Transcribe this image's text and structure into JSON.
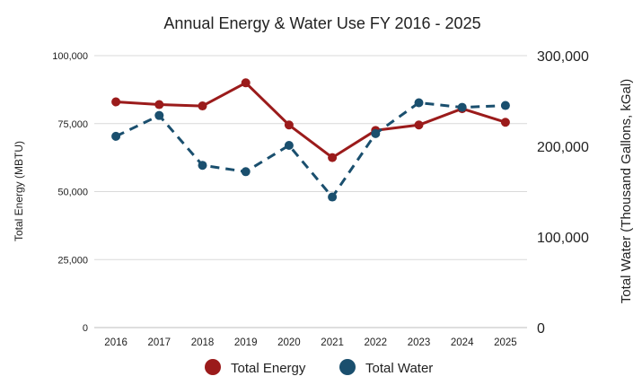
{
  "chart_data": {
    "type": "line",
    "title": "Annual Energy & Water Use FY 2016 - 2025",
    "categories": [
      "2016",
      "2017",
      "2018",
      "2019",
      "2020",
      "2021",
      "2022",
      "2023",
      "2024",
      "2025"
    ],
    "y_left": {
      "label": "Total Energy (MBTU)",
      "ylim": [
        0,
        100000
      ],
      "ticks": [
        0,
        25000,
        50000,
        75000,
        100000
      ],
      "tick_labels": [
        "0",
        "25,000",
        "50,000",
        "75,000",
        "100,000"
      ]
    },
    "y_right": {
      "label": "Total Water (Thousand Gallons, kGal)",
      "ylim": [
        0,
        300000
      ],
      "ticks": [
        0,
        100000,
        200000,
        300000
      ],
      "tick_labels": [
        "0",
        "100,000",
        "200,000",
        "300,000"
      ]
    },
    "series": [
      {
        "name": "Total Energy",
        "axis": "left",
        "color": "#9b1b1b",
        "line_style": "solid",
        "values": [
          83000,
          82000,
          81500,
          90000,
          74500,
          62500,
          72500,
          74500,
          80500,
          75500
        ]
      },
      {
        "name": "Total Water",
        "axis": "right",
        "color": "#1a4f6e",
        "line_style": "dashed",
        "values": [
          211000,
          234000,
          179000,
          172000,
          201000,
          144000,
          214000,
          248000,
          243000,
          245000
        ]
      }
    ],
    "grid": true,
    "legend_position": "bottom"
  }
}
